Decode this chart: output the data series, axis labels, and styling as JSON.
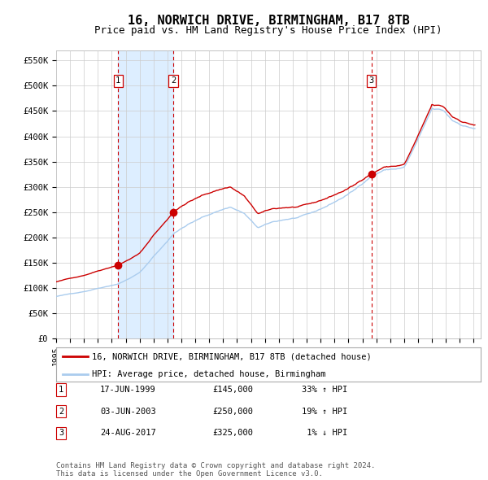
{
  "title": "16, NORWICH DRIVE, BIRMINGHAM, B17 8TB",
  "subtitle": "Price paid vs. HM Land Registry's House Price Index (HPI)",
  "title_fontsize": 11,
  "subtitle_fontsize": 9,
  "ylabel_ticks": [
    "£0",
    "£50K",
    "£100K",
    "£150K",
    "£200K",
    "£250K",
    "£300K",
    "£350K",
    "£400K",
    "£450K",
    "£500K",
    "£550K"
  ],
  "ytick_vals": [
    0,
    50000,
    100000,
    150000,
    200000,
    250000,
    300000,
    350000,
    400000,
    450000,
    500000,
    550000
  ],
  "ylim": [
    0,
    570000
  ],
  "xlim_start": 1995.0,
  "xlim_end": 2025.5,
  "sales": [
    {
      "label": "1",
      "date_num": 1999.46,
      "price": 145000,
      "date_str": "17-JUN-1999",
      "pct": "33%",
      "dir": "↑"
    },
    {
      "label": "2",
      "date_num": 2003.42,
      "price": 250000,
      "date_str": "03-JUN-2003",
      "pct": "19%",
      "dir": "↑"
    },
    {
      "label": "3",
      "date_num": 2017.65,
      "price": 325000,
      "date_str": "24-AUG-2017",
      "pct": "1%",
      "dir": "↓"
    }
  ],
  "legend_entries": [
    "16, NORWICH DRIVE, BIRMINGHAM, B17 8TB (detached house)",
    "HPI: Average price, detached house, Birmingham"
  ],
  "footnote": "Contains HM Land Registry data © Crown copyright and database right 2024.\nThis data is licensed under the Open Government Licence v3.0.",
  "red_color": "#cc0000",
  "blue_color": "#aaccee",
  "shade_color": "#ddeeff",
  "grid_color": "#cccccc",
  "background_color": "#ffffff",
  "table_rows": [
    [
      "1",
      "17-JUN-1999",
      "£145,000",
      "33% ↑ HPI"
    ],
    [
      "2",
      "03-JUN-2003",
      "£250,000",
      "19% ↑ HPI"
    ],
    [
      "3",
      "24-AUG-2017",
      "£325,000",
      " 1% ↓ HPI"
    ]
  ]
}
